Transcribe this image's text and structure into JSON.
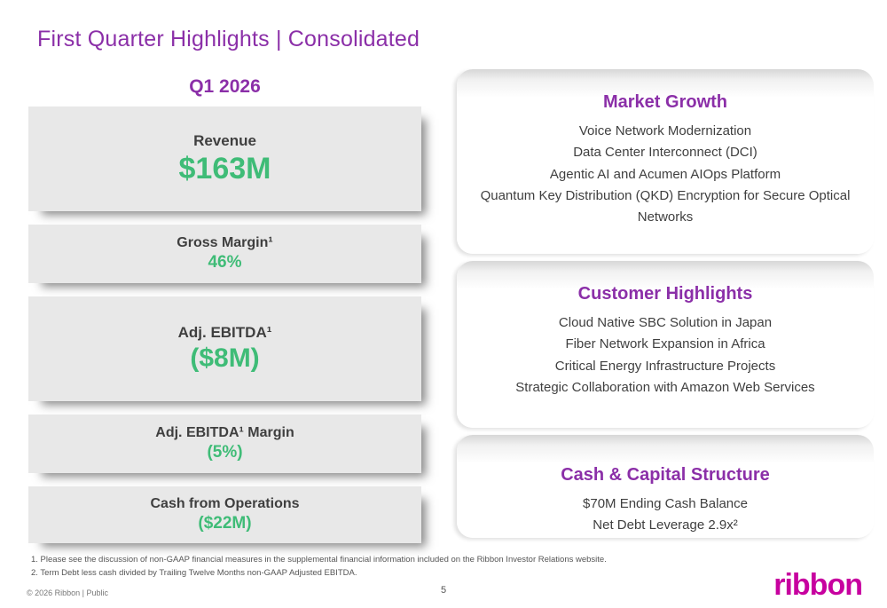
{
  "colors": {
    "accent": "#8B2FA8",
    "green": "#3FBC77",
    "logo": "#C7019F"
  },
  "slide": {
    "title": "First Quarter Highlights | Consolidated",
    "subtitle": "Q1 2026",
    "page_number": "5",
    "copyright": "© 2026 Ribbon | Public",
    "logo_text": "ribbon"
  },
  "metrics": [
    {
      "label": "Revenue",
      "value": "$163M"
    },
    {
      "label": "Gross Margin¹",
      "value": "46%"
    },
    {
      "label": "Adj. EBITDA¹",
      "value": "($8M)"
    },
    {
      "label": "Adj. EBITDA¹ Margin",
      "value": "(5%)"
    },
    {
      "label": "Cash from Operations",
      "value": "($22M)"
    }
  ],
  "sections": [
    {
      "title": "Market Growth",
      "items": [
        "Voice Network Modernization",
        "Data Center Interconnect (DCI)",
        "Agentic AI and Acumen AIOps Platform",
        "Quantum Key Distribution (QKD) Encryption for Secure Optical Networks"
      ]
    },
    {
      "title": "Customer Highlights",
      "items": [
        "Cloud Native SBC Solution in Japan",
        "Fiber Network Expansion in Africa",
        "Critical Energy Infrastructure Projects",
        "Strategic Collaboration with Amazon Web Services"
      ]
    },
    {
      "title": "Cash & Capital Structure",
      "items": [
        "$70M Ending Cash Balance",
        "Net Debt Leverage 2.9x²"
      ]
    }
  ],
  "footnotes": [
    "1.  Please see the discussion of non-GAAP financial measures in the supplemental financial information included on the Ribbon Investor Relations website.",
    "2.  Term Debt less cash divided by Trailing Twelve Months non-GAAP Adjusted EBITDA."
  ]
}
